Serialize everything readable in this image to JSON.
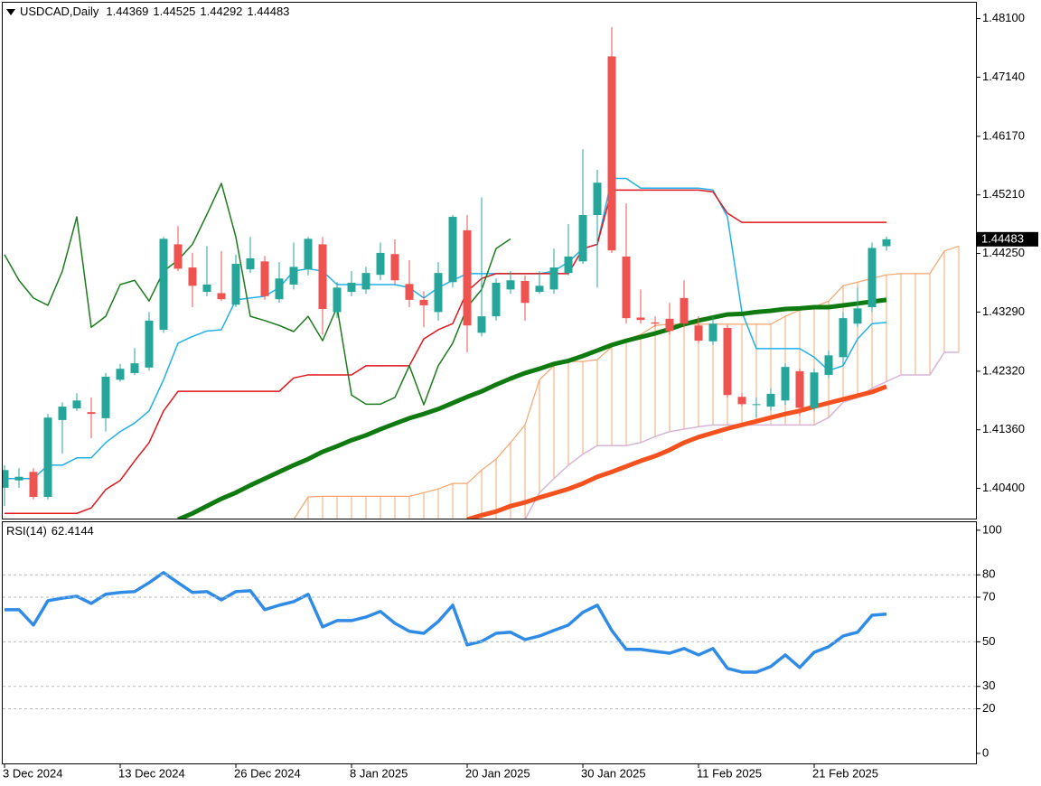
{
  "chart_data": [
    {
      "type": "candlestick",
      "title": "USDCAD,Daily",
      "categories": [
        "3 Dec 2024",
        null,
        null,
        null,
        null,
        null,
        null,
        null,
        "13 Dec 2024",
        null,
        null,
        null,
        null,
        null,
        null,
        null,
        "26 Dec 2024",
        null,
        null,
        null,
        null,
        null,
        null,
        null,
        "8 Jan 2025",
        null,
        null,
        null,
        null,
        null,
        null,
        null,
        "20 Jan 2025",
        null,
        null,
        null,
        null,
        null,
        null,
        null,
        "30 Jan 2025",
        null,
        null,
        null,
        null,
        null,
        null,
        null,
        "11 Feb 2025",
        null,
        null,
        null,
        null,
        null,
        null,
        null,
        "21 Feb 2025",
        null,
        null,
        null,
        null,
        null,
        null,
        null,
        null,
        null,
        null
      ],
      "open": [
        1.4041,
        1.4053,
        1.4067,
        1.4026,
        1.4152,
        1.4171,
        1.4165,
        1.4155,
        1.4218,
        1.4229,
        1.4238,
        1.43,
        1.444,
        1.4402,
        1.4362,
        1.436,
        1.4341,
        1.4399,
        1.4412,
        1.435,
        1.4374,
        1.4399,
        1.444,
        1.4329,
        1.4362,
        1.4366,
        1.439,
        1.4424,
        1.4375,
        1.4349,
        1.4329,
        1.4378,
        1.4463,
        1.4295,
        1.4322,
        1.4366,
        1.438,
        1.4362,
        1.4366,
        1.4393,
        1.4412,
        1.4488,
        1.4748,
        1.442,
        1.432,
        1.4312,
        1.4318,
        1.4352,
        1.4307,
        1.4281,
        1.4303,
        1.419,
        1.4177,
        1.4174,
        1.4184,
        1.4232,
        1.4172,
        1.4226,
        1.4255,
        1.431,
        1.4337,
        1.44369,
        null,
        null,
        null,
        null,
        null
      ],
      "high": [
        1.4078,
        1.4073,
        1.4073,
        1.4162,
        1.4181,
        1.4196,
        1.4189,
        1.4229,
        1.4244,
        1.427,
        1.4329,
        1.4452,
        1.447,
        1.4426,
        1.4437,
        1.4429,
        1.4423,
        1.4452,
        1.4421,
        1.4411,
        1.4443,
        1.4452,
        1.4452,
        1.4378,
        1.4396,
        1.4403,
        1.4443,
        1.4448,
        1.4414,
        1.4363,
        1.4411,
        1.4488,
        1.4488,
        1.4517,
        1.4384,
        1.4396,
        1.4389,
        1.4396,
        1.4433,
        1.4473,
        1.4596,
        1.4562,
        1.4796,
        1.4507,
        1.4366,
        1.4322,
        1.4344,
        1.4381,
        1.4322,
        1.4322,
        1.4307,
        1.4196,
        1.4189,
        1.4204,
        1.4245,
        1.4236,
        1.4236,
        1.4266,
        1.4329,
        1.4369,
        1.4443,
        1.44525,
        null,
        null,
        null,
        null,
        null
      ],
      "low": [
        1.4011,
        1.4041,
        1.4022,
        1.4022,
        1.4097,
        1.4167,
        1.4122,
        1.4133,
        1.4215,
        1.4226,
        1.4233,
        1.4295,
        1.4396,
        1.4337,
        1.4355,
        1.4347,
        1.4337,
        1.4393,
        1.4349,
        1.4344,
        1.4366,
        1.4389,
        1.4292,
        1.4319,
        1.4355,
        1.4359,
        1.4381,
        1.4374,
        1.4337,
        1.4304,
        1.4315,
        1.4369,
        1.4263,
        1.4289,
        1.4315,
        1.4359,
        1.4315,
        1.4359,
        1.4359,
        1.4389,
        1.4408,
        1.4369,
        1.4426,
        1.431,
        1.431,
        1.4304,
        1.4292,
        1.4304,
        1.4278,
        1.4275,
        1.4189,
        1.4174,
        1.4156,
        1.4167,
        1.4177,
        1.4159,
        1.4167,
        1.4221,
        1.4241,
        1.4304,
        1.4329,
        1.44292,
        null,
        null,
        null,
        null,
        null
      ],
      "close": [
        1.407,
        1.4059,
        1.4026,
        1.4156,
        1.4174,
        1.4184,
        1.4162,
        1.4223,
        1.4236,
        1.4245,
        1.4315,
        1.4449,
        1.44,
        1.4372,
        1.4374,
        1.435,
        1.4408,
        1.4417,
        1.4355,
        1.4384,
        1.4403,
        1.4449,
        1.4334,
        1.4369,
        1.4377,
        1.4393,
        1.4426,
        1.4381,
        1.4349,
        1.434,
        1.4393,
        1.4485,
        1.4307,
        1.4322,
        1.4377,
        1.4381,
        1.4344,
        1.4372,
        1.4402,
        1.442,
        1.4488,
        1.4541,
        1.443,
        1.4319,
        1.4316,
        1.431,
        1.4298,
        1.431,
        1.4282,
        1.431,
        1.4193,
        1.4178,
        1.4178,
        1.4195,
        1.4239,
        1.4172,
        1.423,
        1.4258,
        1.4319,
        1.4335,
        1.4434,
        1.44483,
        null,
        null,
        null,
        null,
        null
      ],
      "up_color": "#26a69a",
      "down_color": "#ef5350",
      "lines": [
        {
          "color": "#1fb0ea",
          "width": 1.5,
          "values": [
            1.4056,
            1.4056,
            1.4056,
            1.4078,
            1.4078,
            1.409,
            1.409,
            1.4115,
            1.4133,
            1.4147,
            1.4167,
            1.4218,
            1.4278,
            1.4289,
            1.4298,
            1.43,
            1.4349,
            1.4352,
            1.4355,
            1.4369,
            1.4396,
            1.44,
            1.4396,
            1.4374,
            1.4374,
            1.4374,
            1.4374,
            1.4374,
            1.4369,
            1.4352,
            1.4369,
            1.4381,
            1.4392,
            1.4392,
            1.4392,
            1.4392,
            1.4392,
            1.4392,
            1.4396,
            1.4411,
            1.4433,
            1.444,
            1.4548,
            1.4548,
            1.4532,
            1.4532,
            1.4532,
            1.4532,
            1.4532,
            1.4529,
            1.4485,
            1.4329,
            1.4269,
            1.4269,
            1.4269,
            1.4269,
            1.4255,
            1.4233,
            1.4241,
            1.4285,
            1.431,
            1.4312,
            null,
            null,
            null,
            null,
            null
          ]
        },
        {
          "color": "#e0161b",
          "width": 1.5,
          "values": [
            1.3999,
            1.3999,
            1.3999,
            1.3999,
            1.3999,
            1.3999,
            1.4008,
            1.4038,
            1.4053,
            1.4085,
            1.4115,
            1.4167,
            1.4199,
            1.4199,
            1.4199,
            1.4199,
            1.4199,
            1.4199,
            1.4199,
            1.4199,
            1.4221,
            1.4226,
            1.4226,
            1.4226,
            1.4226,
            1.4241,
            1.4241,
            1.4241,
            1.4241,
            1.4285,
            1.43,
            1.431,
            1.4363,
            1.4384,
            1.4392,
            1.4392,
            1.4392,
            1.4392,
            1.4392,
            1.4392,
            1.4433,
            1.444,
            1.4529,
            1.4529,
            1.4529,
            1.4529,
            1.4529,
            1.4529,
            1.4529,
            1.4526,
            1.4491,
            1.4476,
            1.4476,
            1.4476,
            1.4476,
            1.4476,
            1.4476,
            1.4476,
            1.4476,
            1.4476,
            1.4476,
            1.4476,
            null,
            null,
            null,
            null,
            null
          ]
        },
        {
          "color": "#1c7c1c",
          "width": 1.5,
          "values": [
            1.4423,
            1.4381,
            1.4352,
            1.434,
            1.4396,
            1.4485,
            1.4304,
            1.4322,
            1.4374,
            1.4381,
            1.4347,
            1.4396,
            1.4414,
            1.444,
            1.4489,
            1.454,
            1.4452,
            1.4322,
            1.4315,
            1.4307,
            1.4297,
            1.4322,
            1.4282,
            1.4337,
            1.4193,
            1.4178,
            1.4178,
            1.4189,
            1.4241,
            1.4177,
            1.4241,
            1.4278,
            1.4337,
            1.4366,
            1.4433,
            1.4449,
            null,
            null,
            null,
            null,
            null,
            null,
            null,
            null,
            null,
            null,
            null,
            null,
            null,
            null,
            null,
            null,
            null,
            null,
            null,
            null,
            null,
            null,
            null,
            null,
            null,
            null,
            null,
            null,
            null,
            null,
            null
          ]
        },
        {
          "color": "#0f7a0f",
          "width": 5,
          "values": [
            null,
            null,
            null,
            null,
            null,
            null,
            null,
            null,
            null,
            null,
            null,
            null,
            1.3989,
            1.3999,
            1.4011,
            1.4023,
            1.4033,
            1.4045,
            1.4056,
            1.4067,
            1.4078,
            1.4088,
            1.41,
            1.4109,
            1.4119,
            1.4127,
            1.4137,
            1.4146,
            1.4155,
            1.4162,
            1.417,
            1.418,
            1.419,
            1.4199,
            1.421,
            1.422,
            1.4229,
            1.4236,
            1.4244,
            1.4249,
            1.4257,
            1.4266,
            1.4275,
            1.4282,
            1.4288,
            1.4294,
            1.4301,
            1.4309,
            1.4315,
            1.432,
            1.4325,
            1.4326,
            1.4329,
            1.4331,
            1.4334,
            1.4335,
            1.4337,
            1.4337,
            1.434,
            1.4343,
            1.4346,
            1.4349,
            null,
            null,
            null,
            null,
            null
          ]
        },
        {
          "color": "#f4511e",
          "width": 5,
          "values": [
            null,
            null,
            null,
            null,
            null,
            null,
            null,
            null,
            null,
            null,
            null,
            null,
            null,
            null,
            null,
            null,
            null,
            null,
            null,
            null,
            null,
            null,
            null,
            null,
            null,
            null,
            null,
            null,
            null,
            null,
            null,
            null,
            1.3989,
            1.3996,
            1.4002,
            1.4011,
            1.4017,
            1.4025,
            1.4032,
            1.4039,
            1.4048,
            1.4059,
            1.4067,
            1.4076,
            1.4085,
            1.4093,
            1.4103,
            1.4115,
            1.4124,
            1.4131,
            1.4138,
            1.4144,
            1.415,
            1.4156,
            1.4162,
            1.4167,
            1.4174,
            1.418,
            1.4186,
            1.4192,
            1.4198,
            1.4207,
            null,
            null,
            null,
            null,
            null
          ]
        }
      ],
      "cloud": {
        "color": "#f5a46b",
        "span_b_color": "#d6b4d6",
        "span_a": [
          null,
          null,
          null,
          null,
          null,
          null,
          null,
          null,
          null,
          null,
          null,
          null,
          null,
          null,
          null,
          null,
          null,
          null,
          null,
          null,
          1.3989,
          1.4026,
          1.4027,
          1.4027,
          1.4027,
          1.4027,
          1.4027,
          1.4027,
          1.4027,
          1.4033,
          1.4039,
          1.4048,
          1.4048,
          1.407,
          1.4088,
          1.4115,
          1.4144,
          1.4218,
          1.4241,
          1.4248,
          1.4248,
          1.4251,
          1.4272,
          1.4284,
          1.4292,
          1.4307,
          1.4309,
          1.4309,
          1.4309,
          1.4309,
          1.4309,
          1.4309,
          1.4309,
          1.4309,
          1.4322,
          1.4332,
          1.4337,
          1.4347,
          1.4372,
          1.4378,
          1.4384,
          1.439,
          1.4392,
          1.4392,
          1.4392,
          1.4429,
          1.4437
        ],
        "span_b": [
          null,
          null,
          null,
          null,
          null,
          null,
          null,
          null,
          null,
          null,
          null,
          null,
          null,
          null,
          null,
          null,
          null,
          null,
          null,
          null,
          null,
          null,
          null,
          null,
          null,
          null,
          null,
          null,
          null,
          null,
          null,
          null,
          null,
          null,
          null,
          null,
          1.3989,
          1.4033,
          1.4056,
          1.4078,
          1.4096,
          1.411,
          1.411,
          1.411,
          1.4115,
          1.4125,
          1.4133,
          1.4137,
          1.4141,
          1.4144,
          1.4144,
          1.4144,
          1.4144,
          1.4144,
          1.4144,
          1.4144,
          1.4144,
          1.4156,
          1.4181,
          1.4189,
          1.4204,
          1.4215,
          1.4226,
          1.4226,
          1.4226,
          1.4263,
          1.4263
        ]
      },
      "ylim": [
        1.3989,
        1.4836
      ],
      "yticks": [
        {
          "value": 1.481,
          "label": "1.48100"
        },
        {
          "value": 1.4714,
          "label": "1.47140"
        },
        {
          "value": 1.4617,
          "label": "1.46170"
        },
        {
          "value": 1.4521,
          "label": "1.45210"
        },
        {
          "value": 1.4425,
          "label": "1.44250"
        },
        {
          "value": 1.4329,
          "label": "1.43290"
        },
        {
          "value": 1.4232,
          "label": "1.42320"
        },
        {
          "value": 1.4136,
          "label": "1.41360"
        },
        {
          "value": 1.404,
          "label": "1.40400"
        }
      ]
    },
    {
      "type": "line",
      "title": "RSI(14)",
      "color": "#2f8be6",
      "values": [
        64.4,
        64.4,
        57.5,
        68.4,
        69.6,
        70.4,
        67.2,
        71.3,
        72.1,
        72.5,
        76.5,
        81,
        76.5,
        72.1,
        72.5,
        68.8,
        72.5,
        72.9,
        64.4,
        66.4,
        68,
        71.3,
        56.7,
        59.5,
        59.5,
        61.1,
        63.6,
        58.3,
        54.7,
        53.8,
        59.1,
        66.4,
        48.6,
        50.2,
        53.8,
        54.3,
        51,
        52.6,
        55.1,
        57.5,
        63.2,
        66.4,
        55.1,
        46.6,
        46.6,
        45.7,
        44.9,
        47,
        44.1,
        47,
        38.1,
        36.4,
        36.4,
        38.9,
        44.1,
        38.5,
        45.3,
        47.8,
        52.6,
        54.3,
        61.9,
        62.4144
      ],
      "ylim": [
        -4.5,
        103.6
      ],
      "yticks": [
        100,
        80,
        70,
        50,
        30,
        20,
        0
      ],
      "levels": [
        80,
        70,
        50,
        30,
        20
      ]
    }
  ]
}
